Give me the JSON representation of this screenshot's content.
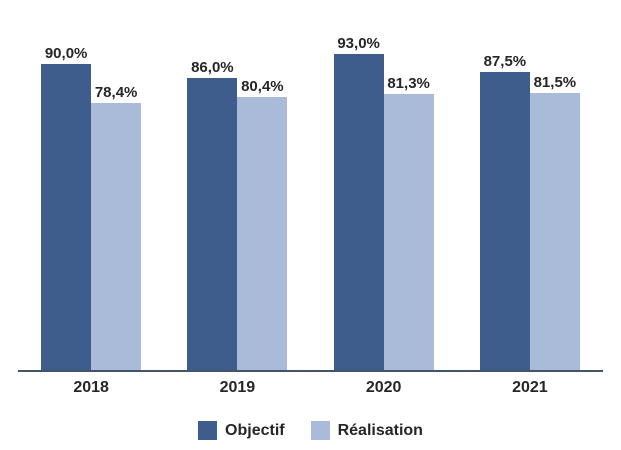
{
  "chart_data": {
    "type": "bar",
    "categories": [
      "2018",
      "2019",
      "2020",
      "2021"
    ],
    "series": [
      {
        "name": "Objectif",
        "slug": "objectif",
        "color": "#3E5C8C",
        "values": [
          90.0,
          86.0,
          93.0,
          87.5
        ],
        "labels": [
          "90,0%",
          "86,0%",
          "93,0%",
          "87,5%"
        ]
      },
      {
        "name": "Réalisation",
        "slug": "realisation",
        "color": "#A9BBD9",
        "values": [
          78.4,
          80.4,
          81.3,
          81.5
        ],
        "labels": [
          "78,4%",
          "80,4%",
          "81,3%",
          "81,5%"
        ]
      }
    ],
    "title": "",
    "xlabel": "",
    "ylabel": "",
    "ylim": [
      0,
      100
    ],
    "grid": false,
    "legend_position": "bottom",
    "value_label_format": "percent-comma",
    "axis_line_color": "#44546A",
    "text_color": "#262626"
  }
}
